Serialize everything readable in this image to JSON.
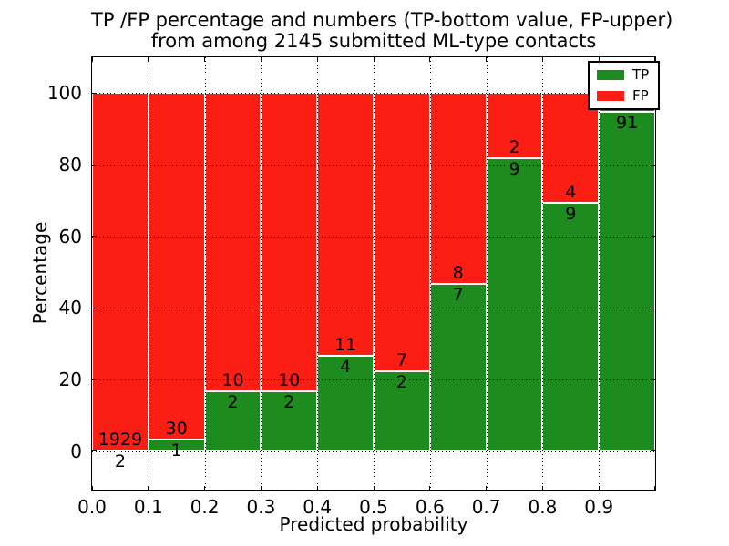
{
  "figure": {
    "title_line1": "TP /FP percentage and numbers (TP-bottom value, FP-upper)",
    "title_line2": "from among 2145 submitted ML-type contacts",
    "xlabel": "Predicted probability",
    "ylabel": "Percentage"
  },
  "legend": {
    "items": [
      {
        "label": "TP",
        "color": "#1e8b1e"
      },
      {
        "label": "FP",
        "color": "#fb1e14"
      }
    ]
  },
  "colors": {
    "tp": "#1e8b1e",
    "fp": "#fb1e14",
    "bar_edge": "#ffffff",
    "grid": "#000000",
    "frame": "#000000",
    "background": "#ffffff"
  },
  "chart_data": {
    "type": "bar",
    "stacked": true,
    "normalized": "each bin scaled to 100%",
    "title": "TP /FP percentage and numbers (TP-bottom value, FP-upper) from among 2145 submitted ML-type contacts",
    "xlabel": "Predicted probability",
    "ylabel": "Percentage",
    "xlim": [
      0.0,
      1.0
    ],
    "ylim": [
      -11,
      110
    ],
    "grid": "dotted",
    "legend_position": "upper right",
    "ytick_values": [
      0,
      20,
      40,
      60,
      80,
      100
    ],
    "ytick_labels": [
      "0",
      "20",
      "40",
      "60",
      "80",
      "100"
    ],
    "xtick_values": [
      0.0,
      0.1,
      0.2,
      0.3,
      0.4,
      0.5,
      0.6,
      0.7,
      0.8,
      0.9
    ],
    "xtick_labels": [
      "0.0",
      "0.1",
      "0.2",
      "0.3",
      "0.4",
      "0.5",
      "0.6",
      "0.7",
      "0.8",
      "0.9"
    ],
    "series": [
      {
        "name": "TP",
        "color": "#1e8b1e"
      },
      {
        "name": "FP",
        "color": "#fb1e14"
      }
    ],
    "bins": [
      {
        "x0": 0.0,
        "x1": 0.1,
        "tp": 2,
        "fp": 1929,
        "tp_pct": 0.1,
        "tp_label": "2",
        "fp_label": "1929"
      },
      {
        "x0": 0.1,
        "x1": 0.2,
        "tp": 1,
        "fp": 30,
        "tp_pct": 3.23,
        "tp_label": "1",
        "fp_label": "30"
      },
      {
        "x0": 0.2,
        "x1": 0.3,
        "tp": 2,
        "fp": 10,
        "tp_pct": 16.67,
        "tp_label": "2",
        "fp_label": "10"
      },
      {
        "x0": 0.3,
        "x1": 0.4,
        "tp": 2,
        "fp": 10,
        "tp_pct": 16.67,
        "tp_label": "2",
        "fp_label": "10"
      },
      {
        "x0": 0.4,
        "x1": 0.5,
        "tp": 4,
        "fp": 11,
        "tp_pct": 26.67,
        "tp_label": "4",
        "fp_label": "11"
      },
      {
        "x0": 0.5,
        "x1": 0.6,
        "tp": 2,
        "fp": 7,
        "tp_pct": 22.22,
        "tp_label": "2",
        "fp_label": "7"
      },
      {
        "x0": 0.6,
        "x1": 0.7,
        "tp": 7,
        "fp": 8,
        "tp_pct": 46.67,
        "tp_label": "7",
        "fp_label": "8"
      },
      {
        "x0": 0.7,
        "x1": 0.8,
        "tp": 9,
        "fp": 2,
        "tp_pct": 81.82,
        "tp_label": "9",
        "fp_label": "2"
      },
      {
        "x0": 0.8,
        "x1": 0.9,
        "tp": 9,
        "fp": 4,
        "tp_pct": 69.23,
        "tp_label": "9",
        "fp_label": "4"
      },
      {
        "x0": 0.9,
        "x1": 1.0,
        "tp": 91,
        "fp": 5,
        "tp_pct": 94.79,
        "tp_label": "91",
        "fp_label": ""
      }
    ]
  }
}
